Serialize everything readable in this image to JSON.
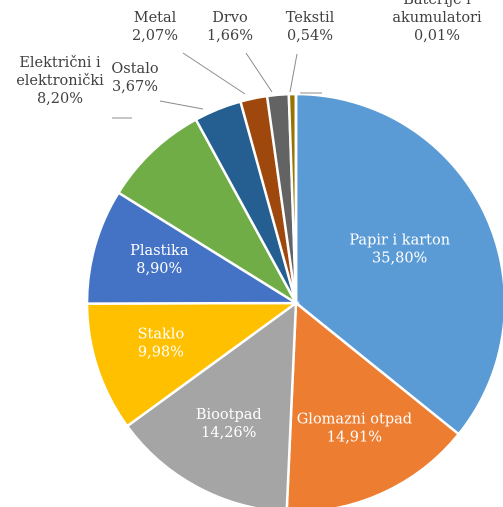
{
  "chart_data": {
    "type": "pie",
    "title": "",
    "slices": [
      {
        "label": [
          "Papir i karton"
        ],
        "value": 35.8,
        "display": "35,80%",
        "color": "#5b9bd5",
        "placement": "inside"
      },
      {
        "label": [
          "Glomazni otpad"
        ],
        "value": 14.91,
        "display": "14,91%",
        "color": "#ed7d31",
        "placement": "inside"
      },
      {
        "label": [
          "Biootpad"
        ],
        "value": 14.26,
        "display": "14,26%",
        "color": "#a5a5a5",
        "placement": "inside"
      },
      {
        "label": [
          "Staklo"
        ],
        "value": 9.98,
        "display": "9,98%",
        "color": "#ffc000",
        "placement": "inside"
      },
      {
        "label": [
          "Plastika"
        ],
        "value": 8.9,
        "display": "8,90%",
        "color": "#4472c4",
        "placement": "inside"
      },
      {
        "label": [
          "Električni i",
          "elektronički"
        ],
        "value": 8.2,
        "display": "8,20%",
        "color": "#70ad47",
        "placement": "outside"
      },
      {
        "label": [
          "Ostalo"
        ],
        "value": 3.67,
        "display": "3,67%",
        "color": "#255e91",
        "placement": "outside"
      },
      {
        "label": [
          "Metal"
        ],
        "value": 2.07,
        "display": "2,07%",
        "color": "#9e480e",
        "placement": "outside"
      },
      {
        "label": [
          "Drvo"
        ],
        "value": 1.66,
        "display": "1,66%",
        "color": "#636363",
        "placement": "outside"
      },
      {
        "label": [
          "Tekstil"
        ],
        "value": 0.54,
        "display": "0,54%",
        "color": "#997300",
        "placement": "outside"
      },
      {
        "label": [
          "Baterije i",
          "akumulatori"
        ],
        "value": 0.01,
        "display": "0,01%",
        "color": "#264478",
        "placement": "outside"
      }
    ],
    "start_angle": "top",
    "direction": "clockwise",
    "legend": "none"
  }
}
